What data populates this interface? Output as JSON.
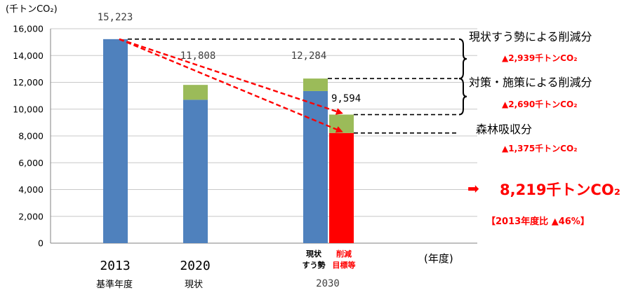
{
  "chart_data": {
    "type": "bar",
    "y_unit_label": "(千トンCO₂)",
    "ylim": [
      0,
      16000
    ],
    "yticks": [
      0,
      2000,
      4000,
      6000,
      8000,
      10000,
      12000,
      14000,
      16000
    ],
    "ytick_labels": [
      "0",
      "2,000",
      "4,000",
      "6,000",
      "8,000",
      "10,000",
      "12,000",
      "14,000",
      "16,000"
    ],
    "grid": true,
    "x_unit_label": "(年度)",
    "bars": [
      {
        "id": "2013",
        "year_label": "2013",
        "sub_label": "基準年度",
        "value_label": "15,223",
        "segments": [
          {
            "color": "#4f81bd",
            "value": 15223
          }
        ]
      },
      {
        "id": "2020",
        "year_label": "2020",
        "sub_label": "現状",
        "value_label": "11,808",
        "segments": [
          {
            "color": "#4f81bd",
            "value": 10700
          },
          {
            "color": "#9bbb59",
            "value": 1108
          }
        ]
      },
      {
        "id": "2030bau",
        "cat_label": [
          "現状",
          "すう勢"
        ],
        "value_label": "12,284",
        "segments": [
          {
            "color": "#4f81bd",
            "value": 11350
          },
          {
            "color": "#9bbb59",
            "value": 934
          }
        ]
      },
      {
        "id": "2030target",
        "cat_label": [
          "削減",
          "目標等"
        ],
        "value_label": "9,594",
        "segments": [
          {
            "color": "#ff0000",
            "value": 8219
          },
          {
            "color": "#9bbb59",
            "value": 1375
          }
        ]
      }
    ],
    "group_label_2030": "2030",
    "annotations": [
      {
        "title": "現状すう勢による削減分",
        "amount": "▲2,939千トンCO₂"
      },
      {
        "title": "対策・施策による削減分",
        "amount": "▲2,690千トンCO₂"
      },
      {
        "title": "森林吸収分",
        "amount": "▲1,375千トンCO₂"
      }
    ],
    "result": {
      "arrow": "➡",
      "value": "8,219千トンCO₂",
      "ratio": "【2013年度比 ▲46%】"
    },
    "colors": {
      "blue": "#4f81bd",
      "green": "#9bbb59",
      "red": "#ff0000",
      "annotation_red": "#ff0000"
    }
  }
}
